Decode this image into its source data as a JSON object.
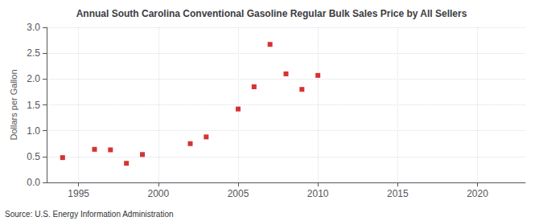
{
  "chart_data": {
    "type": "scatter",
    "title": "Annual South Carolina Conventional Gasoline Regular Bulk Sales Price by All Sellers",
    "ylabel": "Dollars per Gallon",
    "source": "Source: U.S. Energy Information Administration",
    "x": [
      1994,
      1996,
      1997,
      1998,
      1999,
      2002,
      2003,
      2005,
      2006,
      2007,
      2008,
      2009,
      2010
    ],
    "values": [
      0.48,
      0.64,
      0.63,
      0.37,
      0.54,
      0.75,
      0.88,
      1.42,
      1.85,
      2.67,
      2.1,
      1.8,
      2.07
    ],
    "color": "#cc0000",
    "marker": "square",
    "xlim": [
      1993,
      2023
    ],
    "xticks": [
      1995,
      2000,
      2005,
      2010,
      2015,
      2020
    ],
    "ylim": [
      0.0,
      3.0
    ],
    "yticks": [
      {
        "value": 0.0,
        "label": "0.0"
      },
      0.5,
      {
        "value": 1.0,
        "label": "1.0"
      },
      1.5,
      {
        "value": 2.0,
        "label": "2.0"
      },
      2.5,
      {
        "value": 3.0,
        "label": "3.0"
      }
    ],
    "grid": true
  }
}
